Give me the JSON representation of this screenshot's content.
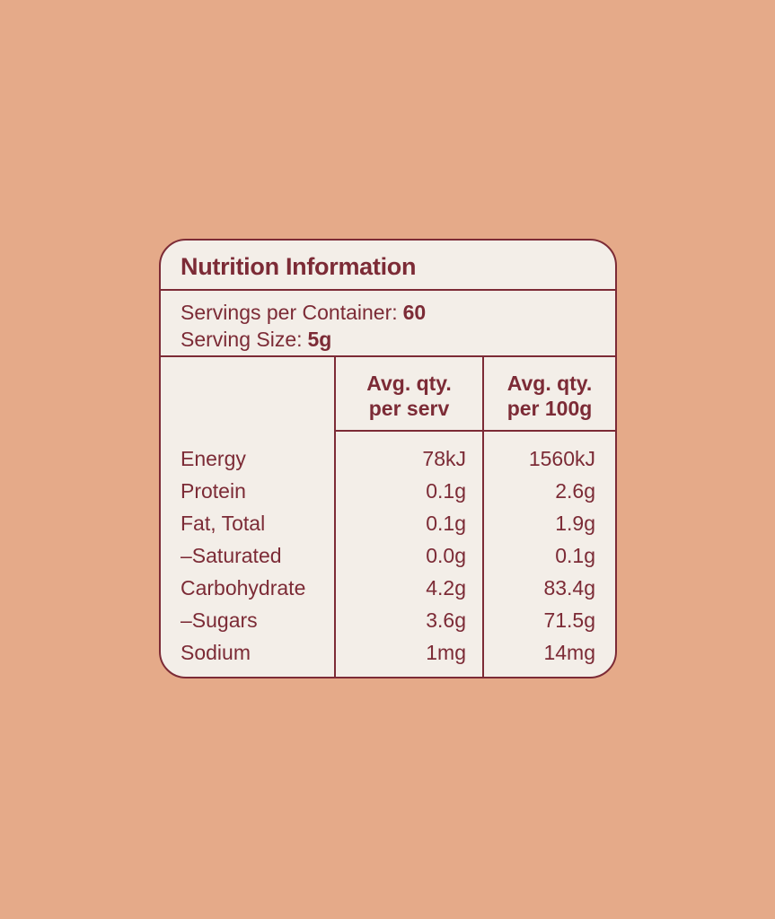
{
  "colors": {
    "background": "#E5AA89",
    "card_background": "#F3EEE8",
    "accent": "#7C2B36"
  },
  "label": {
    "title": "Nutrition Information",
    "servings_per_container": {
      "label": "Servings per Container:",
      "value": "60"
    },
    "serving_size": {
      "label": "Serving Size:",
      "value": "5g"
    },
    "table": {
      "headers": {
        "per_serv": {
          "line1": "Avg. qty.",
          "line2": "per serv"
        },
        "per_100g": {
          "line1": "Avg. qty.",
          "line2": "per 100g"
        }
      },
      "rows": [
        {
          "name": "Energy",
          "per_serv": "78kJ",
          "per_100g": "1560kJ"
        },
        {
          "name": "Protein",
          "per_serv": "0.1g",
          "per_100g": "2.6g"
        },
        {
          "name": "Fat, Total",
          "per_serv": "0.1g",
          "per_100g": "1.9g"
        },
        {
          "name": "–Saturated",
          "per_serv": "0.0g",
          "per_100g": "0.1g"
        },
        {
          "name": "Carbohydrate",
          "per_serv": "4.2g",
          "per_100g": "83.4g"
        },
        {
          "name": "–Sugars",
          "per_serv": "3.6g",
          "per_100g": "71.5g"
        },
        {
          "name": "Sodium",
          "per_serv": "1mg",
          "per_100g": "14mg"
        }
      ]
    }
  }
}
